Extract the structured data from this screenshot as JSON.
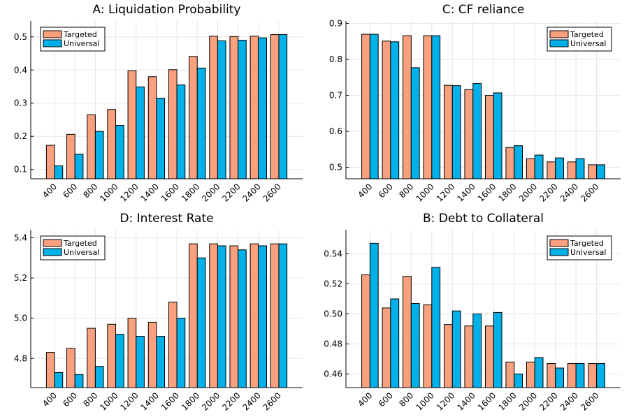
{
  "colors": {
    "targeted": "#f9a17e",
    "universal": "#00b0e8"
  },
  "chart_data": [
    {
      "type": "bar",
      "title": "A: Liquidation Probability",
      "categories": [
        "400",
        "600",
        "800",
        "1000",
        "1200",
        "1400",
        "1600",
        "1800",
        "2000",
        "2200",
        "2400",
        "2600"
      ],
      "series": [
        {
          "name": "Targeted",
          "values": [
            0.173,
            0.206,
            0.265,
            0.281,
            0.398,
            0.38,
            0.401,
            0.441,
            0.502,
            0.501,
            0.502,
            0.507
          ]
        },
        {
          "name": "Universal",
          "values": [
            0.111,
            0.146,
            0.215,
            0.233,
            0.349,
            0.315,
            0.355,
            0.406,
            0.488,
            0.49,
            0.497,
            0.507
          ]
        }
      ],
      "ylim": [
        0.072,
        0.548
      ],
      "yticks": [
        0.1,
        0.2,
        0.3,
        0.4,
        0.5
      ],
      "ytick_labels": [
        "0.1",
        "0.2",
        "0.3",
        "0.4",
        "0.5"
      ],
      "legend": "top-left",
      "grid": true
    },
    {
      "type": "bar",
      "title": "C: CF reliance",
      "categories": [
        "400",
        "600",
        "800",
        "1000",
        "1200",
        "1400",
        "1600",
        "1800",
        "2000",
        "2200",
        "2400",
        "2600"
      ],
      "series": [
        {
          "name": "Targeted",
          "values": [
            0.87,
            0.851,
            0.866,
            0.866,
            0.728,
            0.716,
            0.7,
            0.555,
            0.524,
            0.515,
            0.515,
            0.507
          ]
        },
        {
          "name": "Universal",
          "values": [
            0.87,
            0.849,
            0.777,
            0.866,
            0.727,
            0.733,
            0.707,
            0.56,
            0.534,
            0.526,
            0.524,
            0.507
          ]
        }
      ],
      "ylim": [
        0.468,
        0.907
      ],
      "yticks": [
        0.5,
        0.6,
        0.7,
        0.8,
        0.9
      ],
      "ytick_labels": [
        "0.5",
        "0.6",
        "0.7",
        "0.8",
        "0.9"
      ],
      "legend": "top-right",
      "grid": true
    },
    {
      "type": "bar",
      "title": "D: Interest Rate",
      "categories": [
        "400",
        "600",
        "800",
        "1000",
        "1200",
        "1400",
        "1600",
        "1800",
        "2000",
        "2200",
        "2400",
        "2600"
      ],
      "series": [
        {
          "name": "Targeted",
          "values": [
            4.83,
            4.85,
            4.95,
            4.97,
            5.0,
            4.98,
            5.08,
            5.37,
            5.37,
            5.36,
            5.37,
            5.37
          ]
        },
        {
          "name": "Universal",
          "values": [
            4.73,
            4.72,
            4.76,
            4.92,
            4.91,
            4.91,
            5.0,
            5.3,
            5.36,
            5.34,
            5.36,
            5.37
          ]
        }
      ],
      "ylim": [
        4.655,
        5.44
      ],
      "yticks": [
        4.8,
        5.0,
        5.2,
        5.4
      ],
      "ytick_labels": [
        "4.8",
        "5.0",
        "5.2",
        "5.4"
      ],
      "legend": "top-left",
      "grid": true
    },
    {
      "type": "bar",
      "title": "B: Debt to Collateral",
      "categories": [
        "400",
        "600",
        "800",
        "1000",
        "1200",
        "1400",
        "1600",
        "1800",
        "2000",
        "2200",
        "2400",
        "2600"
      ],
      "series": [
        {
          "name": "Targeted",
          "values": [
            0.526,
            0.504,
            0.525,
            0.506,
            0.493,
            0.492,
            0.492,
            0.468,
            0.468,
            0.467,
            0.467,
            0.467
          ]
        },
        {
          "name": "Universal",
          "values": [
            0.547,
            0.51,
            0.507,
            0.531,
            0.502,
            0.5,
            0.501,
            0.46,
            0.471,
            0.464,
            0.467,
            0.467
          ]
        }
      ],
      "ylim": [
        0.451,
        0.556
      ],
      "yticks": [
        0.46,
        0.48,
        0.5,
        0.52,
        0.54
      ],
      "ytick_labels": [
        "0.46",
        "0.48",
        "0.50",
        "0.52",
        "0.54"
      ],
      "legend": "top-right",
      "grid": true
    }
  ]
}
